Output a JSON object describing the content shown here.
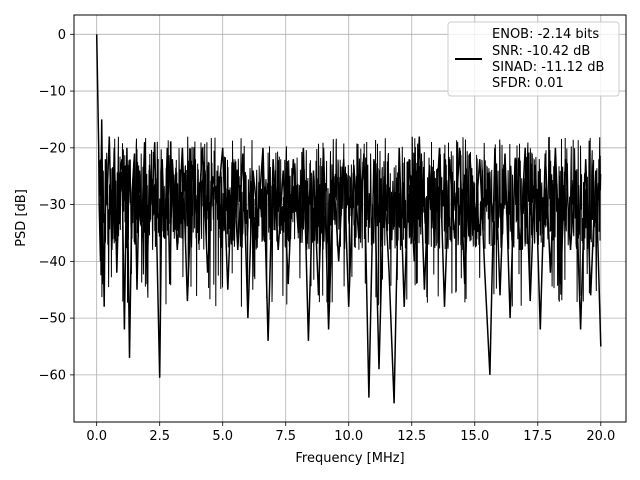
{
  "chart_data": {
    "type": "line",
    "title": "",
    "xlabel": "Frequency [MHz]",
    "ylabel": "PSD [dB]",
    "xlim": [
      -0.9,
      21.0
    ],
    "ylim": [
      -68.3,
      3.4
    ],
    "x_ticks": [
      0.0,
      2.5,
      5.0,
      7.5,
      10.0,
      12.5,
      15.0,
      17.5,
      20.0
    ],
    "x_tick_labels": [
      "0.0",
      "2.5",
      "5.0",
      "7.5",
      "10.0",
      "12.5",
      "15.0",
      "17.5",
      "20.0"
    ],
    "y_ticks": [
      0,
      -10,
      -20,
      -30,
      -40,
      -50,
      -60
    ],
    "y_tick_labels": [
      "0",
      "−10",
      "−20",
      "−30",
      "−40",
      "−50",
      "−60"
    ],
    "grid": true,
    "legend_position": "top-right",
    "series_color": "#000000",
    "legend_entries": [
      "ENOB: -2.14 bits",
      "SNR: -10.42 dB",
      "SINAD: -11.12 dB",
      "SFDR: 0.01"
    ],
    "series": [
      {
        "x": [
          0.0,
          0.02,
          0.05,
          0.08,
          0.1,
          0.15,
          0.2,
          0.25,
          0.3,
          0.35,
          0.4,
          0.5,
          0.6,
          0.7,
          0.8,
          0.9,
          1.0,
          1.1,
          1.2,
          1.3,
          1.4,
          1.5,
          1.6,
          1.7,
          1.8,
          1.9,
          2.0,
          2.1,
          2.2,
          2.3,
          2.4,
          2.5,
          2.6,
          2.7,
          2.8,
          2.9,
          3.0,
          3.2,
          3.4,
          3.6,
          3.8,
          4.0,
          4.2,
          4.4,
          4.6,
          4.8,
          5.0,
          5.2,
          5.4,
          5.6,
          5.8,
          6.0,
          6.2,
          6.4,
          6.6,
          6.8,
          7.0,
          7.2,
          7.4,
          7.6,
          7.8,
          8.0,
          8.2,
          8.4,
          8.6,
          8.8,
          9.0,
          9.2,
          9.4,
          9.6,
          9.8,
          10.0,
          10.2,
          10.4,
          10.6,
          10.8,
          11.0,
          11.2,
          11.4,
          11.6,
          11.8,
          12.0,
          12.2,
          12.4,
          12.6,
          12.8,
          13.0,
          13.2,
          13.4,
          13.6,
          13.8,
          14.0,
          14.2,
          14.4,
          14.6,
          14.8,
          15.0,
          15.2,
          15.4,
          15.6,
          15.8,
          16.0,
          16.2,
          16.4,
          16.6,
          16.8,
          17.0,
          17.2,
          17.4,
          17.6,
          17.8,
          18.0,
          18.2,
          18.4,
          18.6,
          18.8,
          19.0,
          19.2,
          19.4,
          19.6,
          19.8,
          20.0
        ],
        "y": [
          0.0,
          -5.0,
          -12.0,
          -20.0,
          -30.0,
          -40.0,
          -15.0,
          -35.0,
          -48.0,
          -22.0,
          -30.0,
          -18.0,
          -38.0,
          -20.0,
          -42.0,
          -25.0,
          -22.0,
          -52.0,
          -20.0,
          -57.0,
          -28.0,
          -21.0,
          -45.0,
          -24.0,
          -33.0,
          -19.0,
          -44.0,
          -23.0,
          -30.0,
          -19.0,
          -40.0,
          -60.5,
          -22.0,
          -36.0,
          -20.0,
          -44.0,
          -22.0,
          -38.0,
          -20.0,
          -47.0,
          -23.0,
          -35.0,
          -20.0,
          -42.0,
          -25.0,
          -30.0,
          -20.0,
          -45.0,
          -22.0,
          -38.0,
          -21.0,
          -50.0,
          -24.0,
          -33.0,
          -20.0,
          -54.0,
          -22.0,
          -38.0,
          -24.0,
          -44.0,
          -22.0,
          -35.0,
          -20.0,
          -54.0,
          -24.0,
          -46.0,
          -20.0,
          -52.0,
          -25.0,
          -40.0,
          -22.0,
          -48.0,
          -23.0,
          -36.0,
          -21.0,
          -64.0,
          -22.0,
          -59.0,
          -25.0,
          -42.0,
          -65.0,
          -20.0,
          -48.0,
          -22.0,
          -40.0,
          -18.0,
          -45.0,
          -23.0,
          -36.0,
          -20.0,
          -48.0,
          -22.0,
          -36.0,
          -20.0,
          -44.0,
          -21.0,
          -34.0,
          -22.0,
          -42.0,
          -60.0,
          -20.0,
          -46.0,
          -21.0,
          -50.0,
          -22.0,
          -38.0,
          -20.0,
          -47.0,
          -23.0,
          -52.0,
          -21.0,
          -42.0,
          -20.0,
          -44.0,
          -22.0,
          -38.0,
          -24.0,
          -52.0,
          -22.0,
          -46.0,
          -24.0,
          -55.0
        ]
      }
    ]
  }
}
